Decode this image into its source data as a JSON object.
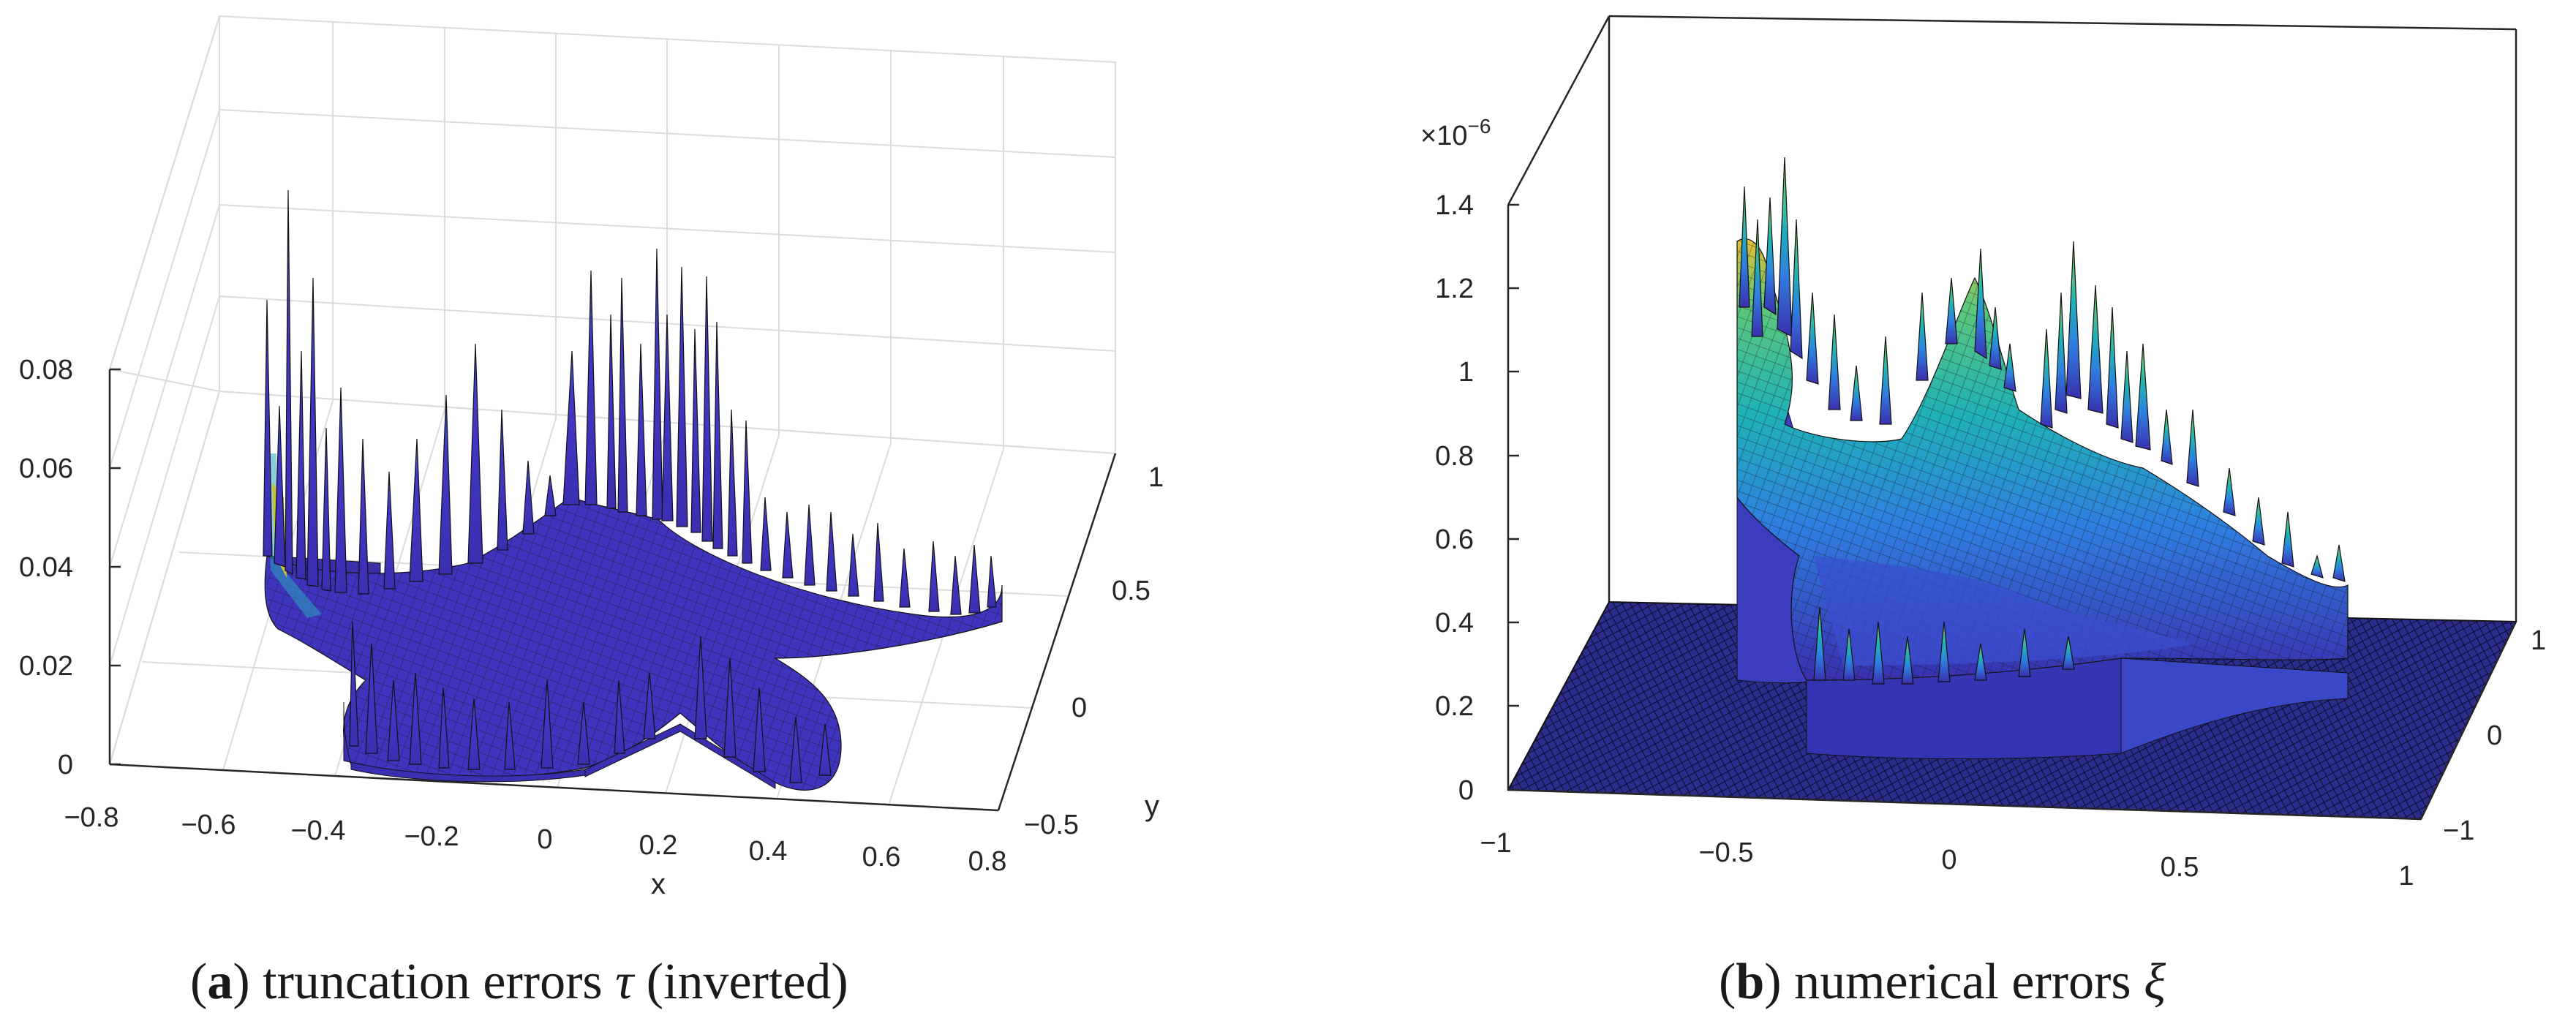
{
  "chart_data": [
    {
      "type": "surface",
      "panel_label": "a",
      "caption": "truncation errors",
      "caption_symbol": "τ",
      "caption_suffix": "(inverted)",
      "xlabel": "x",
      "ylabel": "y",
      "zlabel": "",
      "xlim": [
        -0.8,
        0.8
      ],
      "ylim": [
        -0.5,
        1
      ],
      "zlim": [
        0,
        0.08
      ],
      "xticks": [
        "−0.8",
        "−0.6",
        "−0.4",
        "−0.2",
        "0",
        "0.2",
        "0.4",
        "0.6",
        "0.8"
      ],
      "yticks": [
        "−0.5",
        "0",
        "0.5",
        "1"
      ],
      "zticks": [
        "0",
        "0.02",
        "0.04",
        "0.06",
        "0.08"
      ],
      "shape": "five-armed star domain, surface with spikes up to ~0.08 near the boundary",
      "colormap": "parula",
      "grid": true
    },
    {
      "type": "surface",
      "panel_label": "b",
      "caption": "numerical errors",
      "caption_symbol": "ξ",
      "caption_suffix": "",
      "xlabel": "",
      "ylabel": "",
      "zlabel": "",
      "z_multiplier": "×10",
      "z_multiplier_exp": "−6",
      "xlim": [
        -1,
        1
      ],
      "ylim": [
        -1,
        1
      ],
      "zlim": [
        0,
        1.4
      ],
      "xticks": [
        "−1",
        "−0.5",
        "0",
        "0.5",
        "1"
      ],
      "yticks": [
        "−1",
        "0",
        "1"
      ],
      "zticks": [
        "0",
        "0.2",
        "0.4",
        "0.6",
        "0.8",
        "1",
        "1.2",
        "1.4"
      ],
      "shape": "five-armed star domain, errors up to ~1.4e-6, zero outside domain",
      "colormap": "parula",
      "grid": false
    }
  ]
}
